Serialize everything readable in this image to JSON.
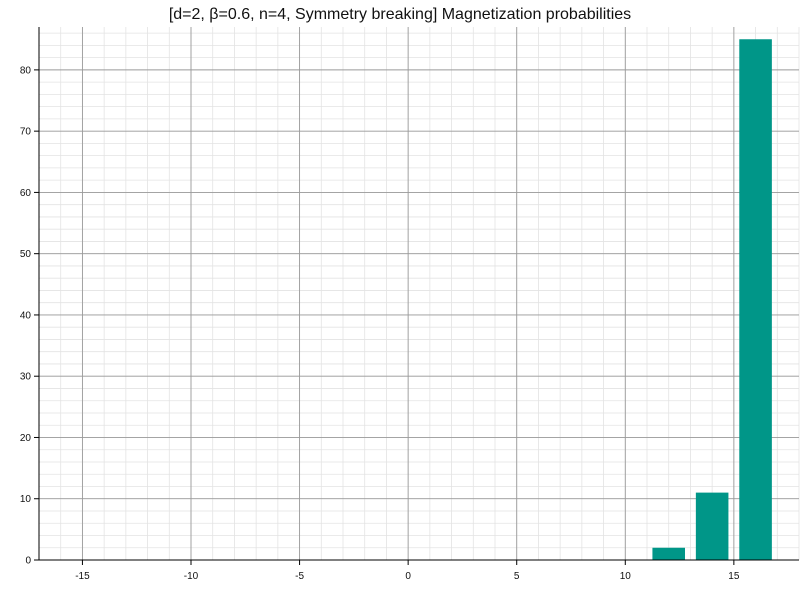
{
  "chart_data": {
    "type": "bar",
    "title": "[d=2, β=0.6, n=4, Symmetry breaking] Magnetization probabilities",
    "xlabel": "",
    "ylabel": "",
    "x": [
      12,
      14,
      16
    ],
    "values": [
      2,
      11,
      85
    ],
    "xlim": [
      -17,
      18
    ],
    "ylim": [
      0,
      87
    ],
    "x_ticks": [
      -15,
      -10,
      -5,
      0,
      5,
      10,
      15
    ],
    "y_ticks": [
      0,
      10,
      20,
      30,
      40,
      50,
      60,
      70,
      80
    ],
    "grid": true,
    "minor_grid": true,
    "bar_color": "#009688"
  }
}
